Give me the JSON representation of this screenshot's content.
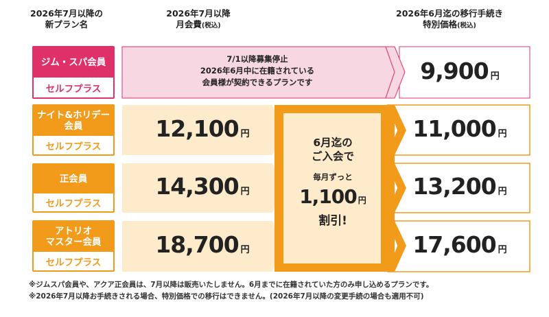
{
  "header": {
    "col1": {
      "line1": "2026年7月以降の",
      "line2": "新プラン名"
    },
    "col2": {
      "line1": "2026年7月以降",
      "line2": "月会費",
      "paren": "(税込)"
    },
    "col3": {
      "line1": "2026年6月迄の移行手続き",
      "line2": "特別価格",
      "paren": "(税込)"
    }
  },
  "rows": [
    {
      "plan": "ジム・スパ会員",
      "sub": "セルフプラス",
      "notice": [
        "7/1以降募集停止",
        "2026年6月中に在籍されている",
        "会員様が契約できるプランです"
      ],
      "special_price": "9,900",
      "yen": "円"
    },
    {
      "plan_line1": "ナイト&ホリデー",
      "plan_line2": "会員",
      "sub": "セルフプラス",
      "monthly_fee": "12,100",
      "special_price": "11,000",
      "yen": "円"
    },
    {
      "plan": "正会員",
      "sub": "セルフプラス",
      "monthly_fee": "14,300",
      "special_price": "13,200",
      "yen": "円"
    },
    {
      "plan_line1": "アトリオ",
      "plan_line2": "マスター会員",
      "sub": "セルフプラス",
      "monthly_fee": "18,700",
      "special_price": "17,600",
      "yen": "円"
    }
  ],
  "discount": {
    "line1": "6月迄の",
    "line2": "ご入会で",
    "line3": "毎月ずっと",
    "amount": "1,100",
    "yen": "円",
    "line5": "割引!"
  },
  "notes": [
    "※ジムスパ会員や、アクア正会員は、7月以降は販売いたしません。6月までに在籍されていた方のみ申し込めるプランです。",
    "※2026年7月以降お手続きされる場合、特別価格での移行はできません。(2026年7月以降の変更手続の場合も適用不可)"
  ],
  "colors": {
    "pink": "#e0306a",
    "pink_light": "#f7d7e1",
    "orange": "#f29a1a",
    "cream": "#fdebcb"
  }
}
